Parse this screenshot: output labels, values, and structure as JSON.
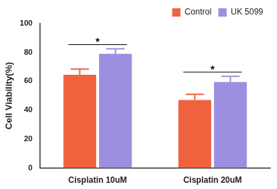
{
  "chart_data": {
    "type": "bar",
    "y_label": "Cell Viability(%)",
    "categories": [
      "Cisplatin 10uM",
      "Cisplatin 20uM"
    ],
    "series": [
      {
        "name": "Control",
        "color": "#f0623e",
        "values": [
          64.5,
          47
        ],
        "errors": [
          4,
          4
        ]
      },
      {
        "name": "UK 5099",
        "color": "#9d8fe0",
        "values": [
          79,
          59.5
        ],
        "errors": [
          3.5,
          4
        ]
      }
    ],
    "annotations": [
      {
        "category": "Cisplatin 10uM",
        "text": "*"
      },
      {
        "category": "Cisplatin 20uM",
        "text": "*"
      }
    ],
    "ylim": [
      0,
      100
    ],
    "yticks": [
      0,
      20,
      40,
      60,
      80,
      100
    ],
    "grid": false,
    "legend": "upper right"
  }
}
